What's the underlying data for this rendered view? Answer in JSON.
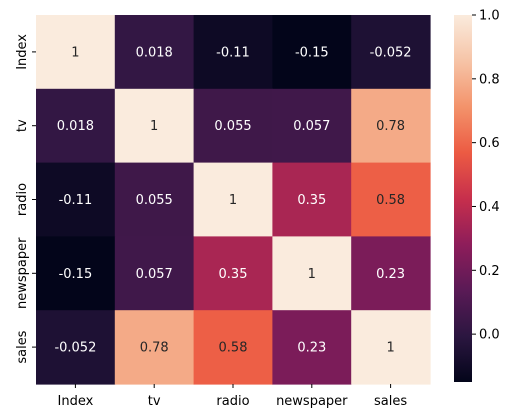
{
  "chart_data": {
    "type": "heatmap",
    "rows": [
      "Index",
      "tv",
      "radio",
      "newspaper",
      "sales"
    ],
    "columns": [
      "Index",
      "tv",
      "radio",
      "newspaper",
      "sales"
    ],
    "values": [
      [
        1,
        0.018,
        -0.11,
        -0.15,
        -0.052
      ],
      [
        0.018,
        1,
        0.055,
        0.057,
        0.78
      ],
      [
        -0.11,
        0.055,
        1,
        0.35,
        0.58
      ],
      [
        -0.15,
        0.057,
        0.35,
        1,
        0.23
      ],
      [
        -0.052,
        0.78,
        0.58,
        0.23,
        1
      ]
    ],
    "annotations": [
      [
        "1",
        "0.018",
        "-0.11",
        "-0.15",
        "-0.052"
      ],
      [
        "0.018",
        "1",
        "0.055",
        "0.057",
        "0.78"
      ],
      [
        "-0.11",
        "0.055",
        "1",
        "0.35",
        "0.58"
      ],
      [
        "-0.15",
        "0.057",
        "0.35",
        "1",
        "0.23"
      ],
      [
        "-0.052",
        "0.78",
        "0.58",
        "0.23",
        "1"
      ]
    ],
    "colorbar": {
      "range": [
        -0.15,
        1.0
      ],
      "ticks": [
        -0.0,
        0.2,
        0.4,
        0.6,
        0.8,
        1.0
      ],
      "tick_labels": [
        "0.0",
        "0.2",
        "0.4",
        "0.6",
        "0.8",
        "1.0"
      ],
      "colormap": "rocket",
      "stops": [
        "#03051a",
        "#2b1640",
        "#5a1a56",
        "#8e1d5a",
        "#c72f4c",
        "#ec5b43",
        "#f3936b",
        "#f6c4a7",
        "#faebdd"
      ]
    },
    "xlabel": "",
    "ylabel": "",
    "title": ""
  }
}
